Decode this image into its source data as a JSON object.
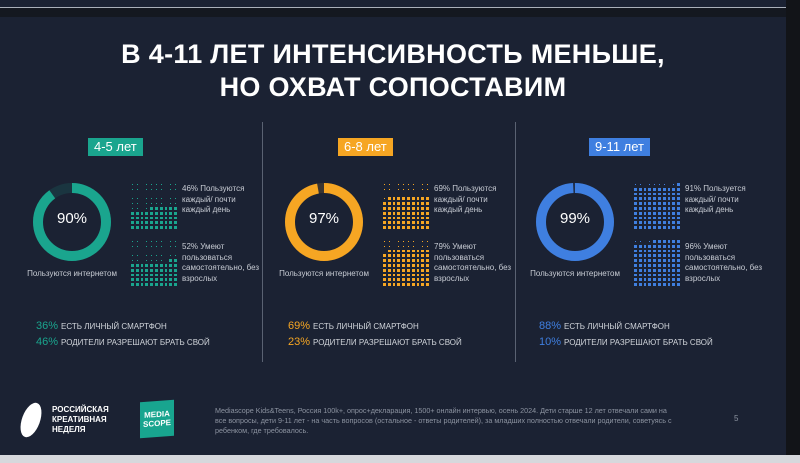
{
  "title_line1": "В 4-11 ЛЕТ ИНТЕНСИВНОСТЬ МЕНЬШЕ,",
  "title_line2": "НО ОХВАТ СОПОСТАВИМ",
  "groups": [
    {
      "label": "4-5 лет",
      "color": "#1aa58e",
      "internet": 90,
      "internet_label": "90%",
      "internet_caption": "Пользуются интернетом",
      "daily": 46,
      "daily_text": "46% Пользуются каждый/ почти каждый день",
      "independent": 52,
      "independent_text": "52% Умеют пользоваться самостоятельно, без взрослых",
      "smartphone_pct": "36%",
      "smartphone_text": "ЕСТЬ ЛИЧНЫЙ СМАРТФОН",
      "parents_pct": "46%",
      "parents_text": "РОДИТЕЛИ  РАЗРЕШАЮТ БРАТЬ СВОЙ"
    },
    {
      "label": "6-8 лет",
      "color": "#f6a623",
      "internet": 97,
      "internet_label": "97%",
      "internet_caption": "Пользуются интернетом",
      "daily": 69,
      "daily_text": "69% Пользуются каждый/ почти каждый день",
      "independent": 79,
      "independent_text": "79% Умеют пользоваться самостоятельно, без взрослых",
      "smartphone_pct": "69%",
      "smartphone_text": "ЕСТЬ ЛИЧНЫЙ СМАРТФОН",
      "parents_pct": "23%",
      "parents_text": "РОДИТЕЛИ  РАЗРЕШАЮТ БРАТЬ СВОЙ"
    },
    {
      "label": "9-11 лет",
      "color": "#3f7fe0",
      "internet": 99,
      "internet_label": "99%",
      "internet_caption": "Пользуются интернетом",
      "daily": 91,
      "daily_text": "91% Пользуется каждый/ почти каждый день",
      "independent": 96,
      "independent_text": "96% Умеют пользоваться самостоятельно, без взрослых",
      "smartphone_pct": "88%",
      "smartphone_text": "ЕСТЬ ЛИЧНЫЙ СМАРТФОН",
      "parents_pct": "10%",
      "parents_text": "РОДИТЕЛИ  РАЗРЕШАЮТ БРАТЬ СВОЙ"
    }
  ],
  "footer": {
    "logo_text": "РОССИЙСКАЯ КРЕАТИВНАЯ НЕДЕЛЯ",
    "mediascope_logo": "MEDIA SCOPE",
    "note": "Mediascope Kids&Teens, Россия 100k+, опрос+декларация, 1500+ онлайн интервью, осень 2024. Дети старше 12 лет отвечали сами на все вопросы, дети 9-11 лет - на часть вопросов (остальное - ответы родителей), за младших полностью отвечали родители, советуясь с ребенком, где требовалось.",
    "page": "5"
  }
}
